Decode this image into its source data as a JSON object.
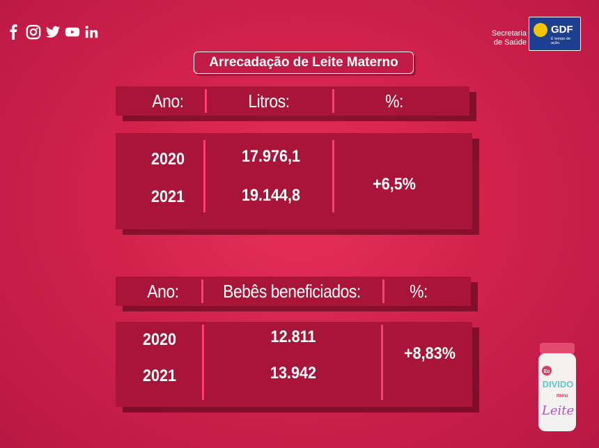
{
  "social_icons": [
    "facebook-icon",
    "instagram-icon",
    "twitter-icon",
    "youtube-icon",
    "linkedin-icon"
  ],
  "header": {
    "secretaria_line1": "Secretaria",
    "secretaria_line2": "de Saúde",
    "gdf_name": "GDF",
    "gdf_slogan": "É tempo de ação."
  },
  "title": "Arrecadação de Leite Materno",
  "table1": {
    "headers": [
      "Ano:",
      "Litros:",
      "%:"
    ],
    "rows": [
      {
        "year": "2020",
        "value": "17.976,1"
      },
      {
        "year": "2021",
        "value": "19.144,8"
      }
    ],
    "percent": "+6,5%"
  },
  "table2": {
    "headers": [
      "Ano:",
      "Bebês beneficiados:",
      "%:"
    ],
    "rows": [
      {
        "year": "2020",
        "value": "12.811"
      },
      {
        "year": "2021",
        "value": "13.942"
      }
    ],
    "percent": "+8,83%"
  },
  "jar": {
    "top": "Eu",
    "word1": "DIVIDO",
    "word2": "meu",
    "word3": "Leite"
  },
  "colors": {
    "background": "#d1224c",
    "panel": "#a91539",
    "separator": "#ff3f74"
  }
}
